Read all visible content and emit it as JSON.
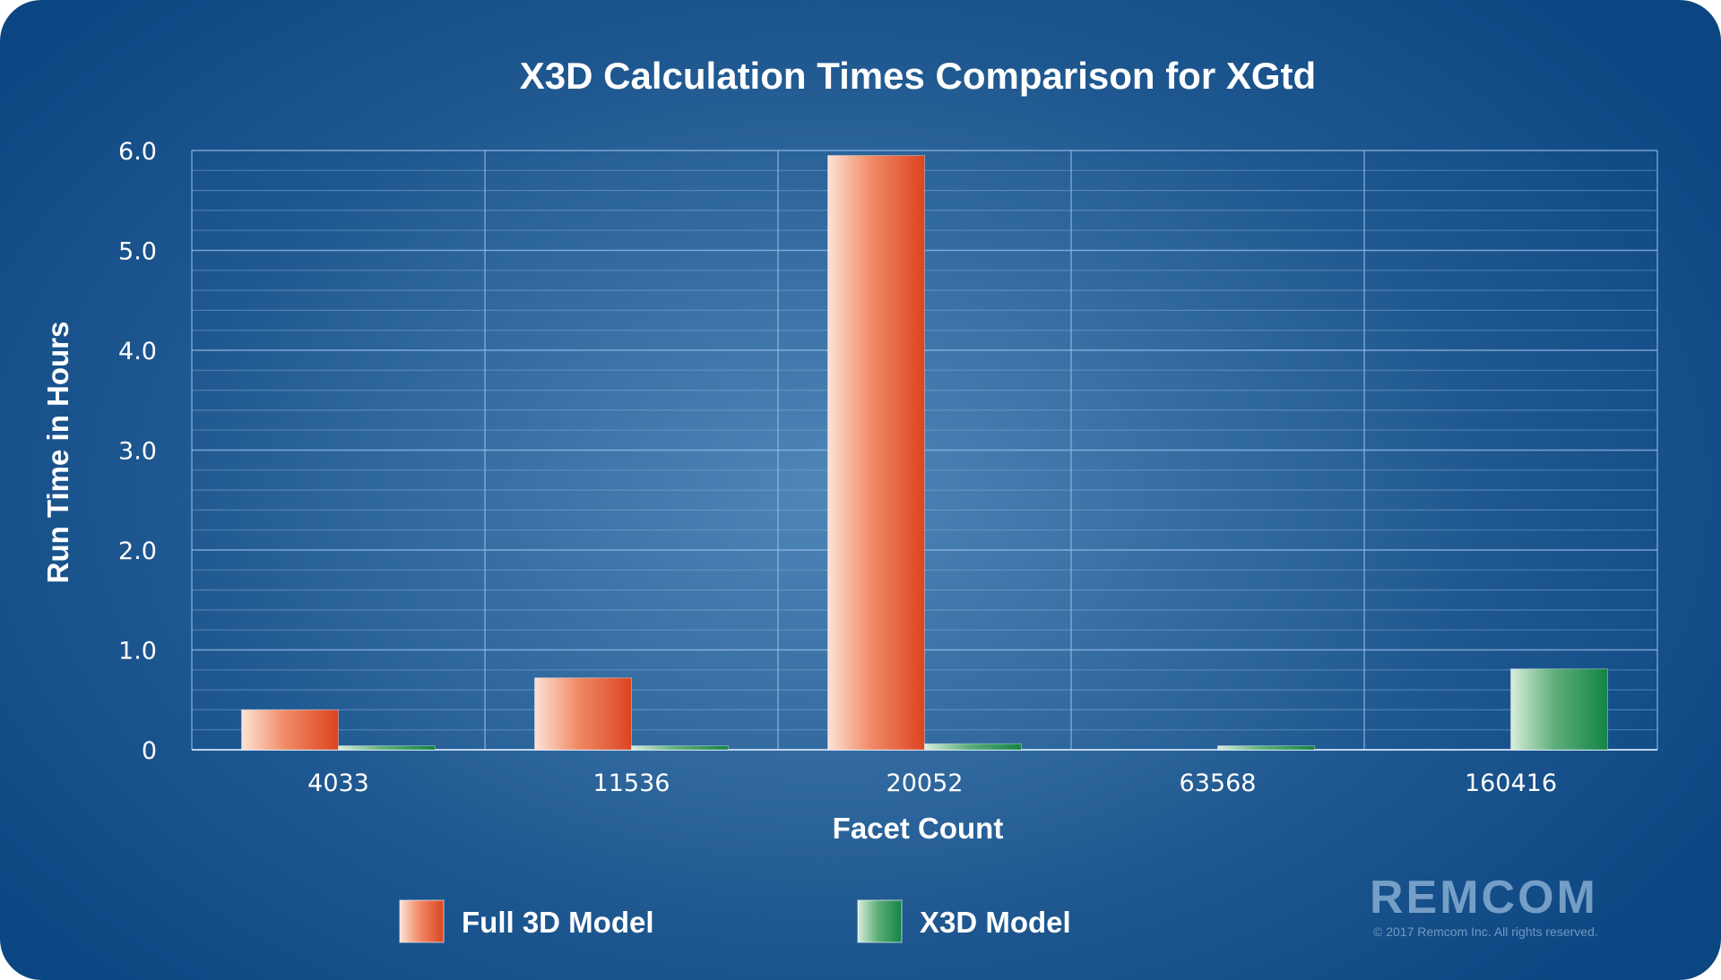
{
  "chart_data": {
    "type": "bar",
    "title": "X3D Calculation Times Comparison for XGtd",
    "xlabel": "Facet Count",
    "ylabel": "Run Time in Hours",
    "categories": [
      "4033",
      "11536",
      "20052",
      "63568",
      "160416"
    ],
    "series": [
      {
        "name": "Full 3D Model",
        "values": [
          0.4,
          0.72,
          5.95,
          0,
          0
        ]
      },
      {
        "name": "X3D Model",
        "values": [
          0.04,
          0.04,
          0.06,
          0.04,
          0.81
        ]
      }
    ],
    "ylim": [
      0,
      6.0
    ],
    "yticks": [
      "0",
      "1.0",
      "2.0",
      "3.0",
      "4.0",
      "5.0",
      "6.0"
    ],
    "minor_gridlines_per_major": 5,
    "grid": true,
    "legend_position": "bottom",
    "colors": {
      "full": "#e4502e",
      "x3d": "#1c8a4e"
    }
  },
  "branding": {
    "logo_text": "REMCOM",
    "copyright": "© 2017 Remcom Inc. All rights reserved."
  }
}
